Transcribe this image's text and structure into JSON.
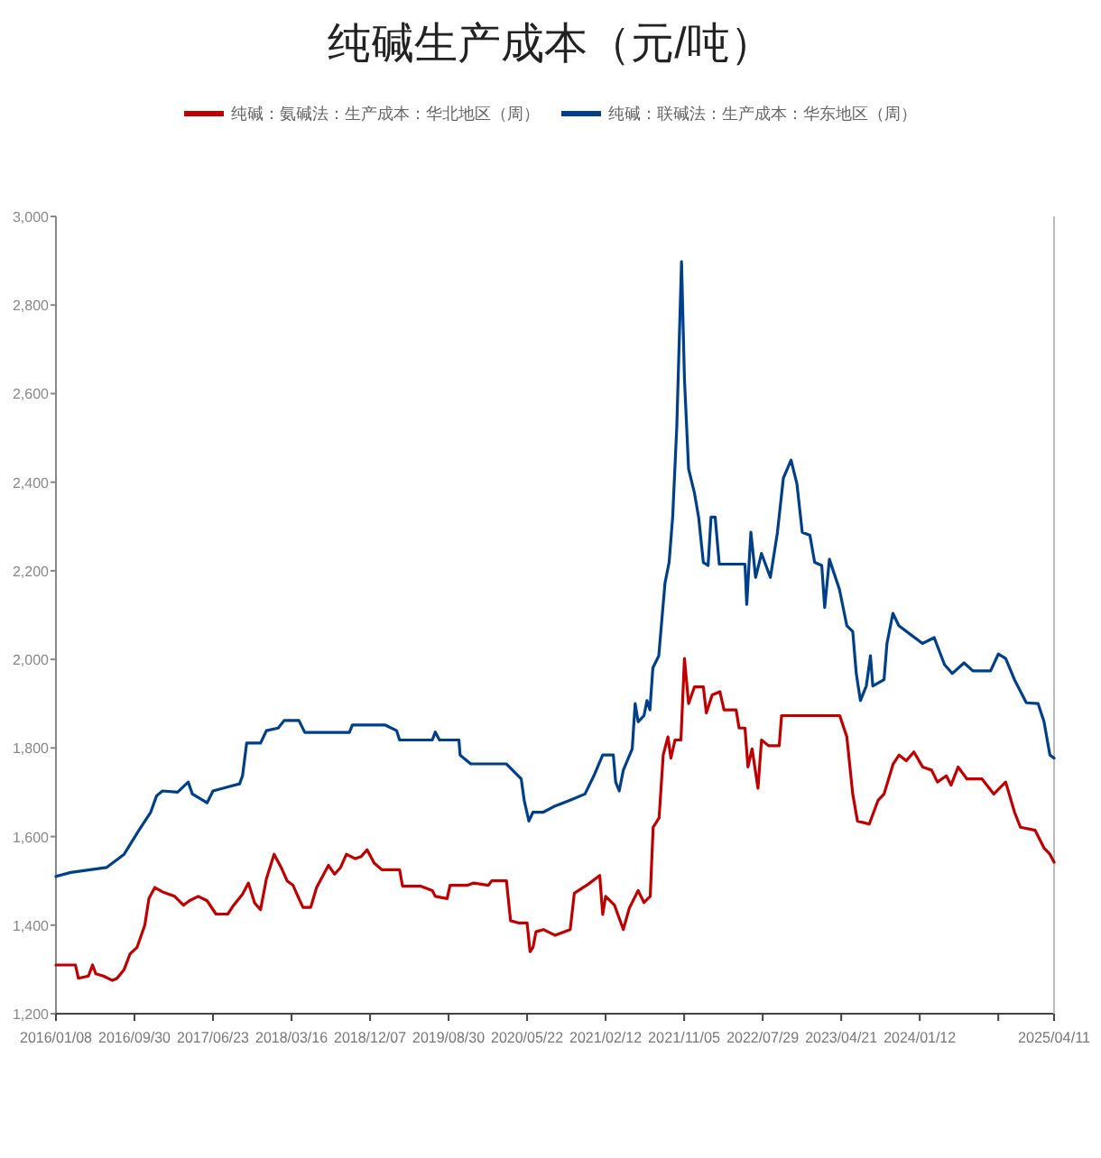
{
  "chart_data": {
    "type": "line",
    "title": "纯碱生产成本（元/吨）",
    "legend": "top",
    "xlim": [
      "2016-01-08",
      "2025-04-11"
    ],
    "xticks": [
      {
        "value": "2016-01-08",
        "label": "2016/01/08"
      },
      {
        "value": "2016-09-30",
        "label": "2016/09/30"
      },
      {
        "value": "2017-06-23",
        "label": "2017/06/23"
      },
      {
        "value": "2018-03-16",
        "label": "2018/03/16"
      },
      {
        "value": "2018-12-07",
        "label": "2018/12/07"
      },
      {
        "value": "2019-08-30",
        "label": "2019/08/30"
      },
      {
        "value": "2020-05-22",
        "label": "2020/05/22"
      },
      {
        "value": "2021-02-12",
        "label": "2021/02/12"
      },
      {
        "value": "2021-11-05",
        "label": "2021/11/05"
      },
      {
        "value": "2022-07-29",
        "label": "2022/07/29"
      },
      {
        "value": "2023-04-21",
        "label": "2023/04/21"
      },
      {
        "value": "2024-01-12",
        "label": "2024/01/12"
      },
      {
        "value": "2024-10-04",
        "label": null
      },
      {
        "value": "2025-04-11",
        "label": "2025/04/11"
      }
    ],
    "ylim": [
      1200,
      3000
    ],
    "yticks": [
      {
        "value": 1200,
        "label": "1,200"
      },
      {
        "value": 1400,
        "label": "1,400"
      },
      {
        "value": 1600,
        "label": "1,600"
      },
      {
        "value": 1800,
        "label": "1,800"
      },
      {
        "value": 2000,
        "label": "2,000"
      },
      {
        "value": 2200,
        "label": "2,200"
      },
      {
        "value": 2400,
        "label": "2,400"
      },
      {
        "value": 2600,
        "label": "2,600"
      },
      {
        "value": 2800,
        "label": "2,800"
      },
      {
        "value": 3000,
        "label": "3,000"
      }
    ],
    "series": [
      {
        "name": "纯碱：氨碱法：生产成本：华北地区（周）",
        "color": "#c00000",
        "x": [
          "2016-01-08",
          "2016-03-14",
          "2016-03-24",
          "2016-04-27",
          "2016-05-11",
          "2016-05-22",
          "2016-06-17",
          "2016-07-17",
          "2016-08-02",
          "2016-08-26",
          "2016-09-15",
          "2016-10-09",
          "2016-11-04",
          "2016-11-18",
          "2016-12-08",
          "2017-01-03",
          "2017-02-13",
          "2017-03-15",
          "2017-04-04",
          "2017-05-04",
          "2017-06-03",
          "2017-07-03",
          "2017-08-12",
          "2017-09-01",
          "2017-10-01",
          "2017-10-21",
          "2017-11-11",
          "2017-12-01",
          "2017-12-21",
          "2018-01-16",
          "2018-02-09",
          "2018-03-01",
          "2018-03-21",
          "2018-04-10",
          "2018-04-24",
          "2018-05-20",
          "2018-06-09",
          "2018-06-29",
          "2018-07-19",
          "2018-08-09",
          "2018-08-29",
          "2018-09-18",
          "2018-10-18",
          "2018-11-07",
          "2018-11-27",
          "2018-12-21",
          "2019-01-16",
          "2019-03-17",
          "2019-03-27",
          "2019-05-27",
          "2019-07-06",
          "2019-07-16",
          "2019-08-25",
          "2019-09-04",
          "2019-11-03",
          "2019-11-23",
          "2020-01-12",
          "2020-01-23",
          "2020-03-13",
          "2020-03-27",
          "2020-04-22",
          "2020-05-22",
          "2020-06-01",
          "2020-06-11",
          "2020-06-21",
          "2020-07-16",
          "2020-08-25",
          "2020-10-15",
          "2020-10-29",
          "2020-12-14",
          "2021-01-23",
          "2021-02-02",
          "2021-02-12",
          "2021-03-14",
          "2021-04-13",
          "2021-05-03",
          "2021-06-02",
          "2021-06-22",
          "2021-07-13",
          "2021-07-23",
          "2021-08-12",
          "2021-08-26",
          "2021-09-11",
          "2021-09-21",
          "2021-10-05",
          "2021-10-25",
          "2021-11-06",
          "2021-11-20",
          "2021-12-10",
          "2022-01-09",
          "2022-01-19",
          "2022-02-08",
          "2022-03-06",
          "2022-03-20",
          "2022-04-30",
          "2022-05-10",
          "2022-05-30",
          "2022-06-09",
          "2022-06-23",
          "2022-07-13",
          "2022-07-25",
          "2022-08-18",
          "2022-09-23",
          "2022-10-01",
          "2023-04-16",
          "2023-05-10",
          "2023-05-30",
          "2023-06-15",
          "2023-07-25",
          "2023-08-24",
          "2023-09-13",
          "2023-10-14",
          "2023-11-03",
          "2023-11-27",
          "2023-12-23",
          "2024-01-22",
          "2024-02-21",
          "2024-03-12",
          "2024-04-11",
          "2024-04-27",
          "2024-05-21",
          "2024-06-20",
          "2024-08-10",
          "2024-09-19",
          "2024-10-29",
          "2024-11-28",
          "2024-12-18",
          "2025-02-06",
          "2025-03-08",
          "2025-03-28",
          "2025-04-11"
        ],
        "values": [
          1310,
          1310,
          1280,
          1285,
          1310,
          1290,
          1285,
          1275,
          1280,
          1300,
          1335,
          1350,
          1400,
          1460,
          1485,
          1475,
          1465,
          1445,
          1455,
          1465,
          1455,
          1425,
          1425,
          1445,
          1470,
          1495,
          1450,
          1435,
          1505,
          1560,
          1530,
          1500,
          1490,
          1460,
          1440,
          1440,
          1485,
          1510,
          1535,
          1515,
          1530,
          1560,
          1550,
          1555,
          1570,
          1540,
          1525,
          1525,
          1488,
          1488,
          1478,
          1465,
          1460,
          1490,
          1490,
          1495,
          1490,
          1500,
          1500,
          1410,
          1405,
          1405,
          1340,
          1350,
          1385,
          1390,
          1377,
          1390,
          1472,
          1492,
          1512,
          1424,
          1465,
          1445,
          1390,
          1438,
          1478,
          1451,
          1465,
          1621,
          1642,
          1784,
          1825,
          1777,
          1818,
          1818,
          2002,
          1900,
          1938,
          1938,
          1879,
          1920,
          1927,
          1886,
          1886,
          1845,
          1845,
          1757,
          1798,
          1709,
          1818,
          1805,
          1805,
          1873,
          1873,
          1825,
          1696,
          1635,
          1628,
          1682,
          1696,
          1764,
          1784,
          1771,
          1791,
          1757,
          1750,
          1723,
          1737,
          1716,
          1757,
          1730,
          1730,
          1696,
          1723,
          1655,
          1621,
          1614,
          1574,
          1560,
          1542
        ]
      },
      {
        "name": "纯碱：联碱法：生产成本：华东地区（周）",
        "color": "#003f8a",
        "x": [
          "2016-01-08",
          "2016-02-27",
          "2016-06-27",
          "2016-08-26",
          "2016-10-15",
          "2016-11-24",
          "2016-12-14",
          "2017-01-03",
          "2017-02-23",
          "2017-03-31",
          "2017-04-14",
          "2017-06-03",
          "2017-06-23",
          "2017-09-21",
          "2017-10-01",
          "2017-10-15",
          "2017-12-01",
          "2017-12-21",
          "2018-01-30",
          "2018-02-19",
          "2018-04-10",
          "2018-04-30",
          "2018-09-28",
          "2018-10-08",
          "2019-01-26",
          "2019-03-07",
          "2019-03-17",
          "2019-07-06",
          "2019-07-16",
          "2019-07-30",
          "2019-10-04",
          "2019-10-08",
          "2019-11-13",
          "2020-03-13",
          "2020-05-02",
          "2020-05-12",
          "2020-05-28",
          "2020-06-11",
          "2020-07-16",
          "2020-08-25",
          "2020-10-15",
          "2020-12-04",
          "2021-01-03",
          "2021-02-02",
          "2021-03-10",
          "2021-03-18",
          "2021-03-30",
          "2021-04-13",
          "2021-05-13",
          "2021-05-23",
          "2021-06-02",
          "2021-06-22",
          "2021-07-02",
          "2021-07-12",
          "2021-07-22",
          "2021-08-11",
          "2021-09-01",
          "2021-09-15",
          "2021-09-27",
          "2021-10-11",
          "2021-10-27",
          "2021-11-06",
          "2021-11-20",
          "2021-12-10",
          "2021-12-24",
          "2022-01-09",
          "2022-01-25",
          "2022-02-04",
          "2022-02-18",
          "2022-03-04",
          "2022-05-30",
          "2022-06-05",
          "2022-06-19",
          "2022-07-05",
          "2022-07-25",
          "2022-08-24",
          "2022-09-17",
          "2022-10-07",
          "2022-11-02",
          "2022-11-22",
          "2022-12-10",
          "2023-01-05",
          "2023-01-21",
          "2023-02-14",
          "2023-02-24",
          "2023-03-12",
          "2023-04-15",
          "2023-05-10",
          "2023-05-30",
          "2023-06-11",
          "2023-06-25",
          "2023-07-15",
          "2023-07-29",
          "2023-08-06",
          "2023-09-13",
          "2023-09-23",
          "2023-10-13",
          "2023-11-02",
          "2023-12-12",
          "2024-01-21",
          "2024-03-01",
          "2024-04-05",
          "2024-05-01",
          "2024-06-10",
          "2024-07-10",
          "2024-09-08",
          "2024-10-04",
          "2024-10-29",
          "2024-11-28",
          "2025-01-07",
          "2025-02-16",
          "2025-03-08",
          "2025-03-28",
          "2025-04-11"
        ],
        "values": [
          1510,
          1519,
          1530,
          1560,
          1614,
          1655,
          1692,
          1703,
          1700,
          1723,
          1696,
          1676,
          1703,
          1719,
          1737,
          1811,
          1811,
          1839,
          1845,
          1862,
          1862,
          1835,
          1835,
          1852,
          1852,
          1839,
          1818,
          1818,
          1836,
          1818,
          1818,
          1784,
          1764,
          1764,
          1730,
          1682,
          1635,
          1655,
          1655,
          1669,
          1682,
          1696,
          1737,
          1784,
          1784,
          1723,
          1703,
          1750,
          1798,
          1900,
          1859,
          1873,
          1907,
          1886,
          1981,
          2008,
          2172,
          2219,
          2321,
          2525,
          2898,
          2633,
          2430,
          2375,
          2321,
          2219,
          2212,
          2321,
          2321,
          2215,
          2215,
          2124,
          2287,
          2185,
          2239,
          2185,
          2287,
          2409,
          2450,
          2396,
          2287,
          2280,
          2219,
          2212,
          2117,
          2226,
          2158,
          2076,
          2063,
          1968,
          1907,
          1940,
          2008,
          1940,
          1954,
          2036,
          2104,
          2076,
          2056,
          2036,
          2049,
          1988,
          1968,
          1992,
          1974,
          1974,
          2012,
          2002,
          1954,
          1902,
          1900,
          1859,
          1784,
          1777
        ]
      }
    ]
  }
}
